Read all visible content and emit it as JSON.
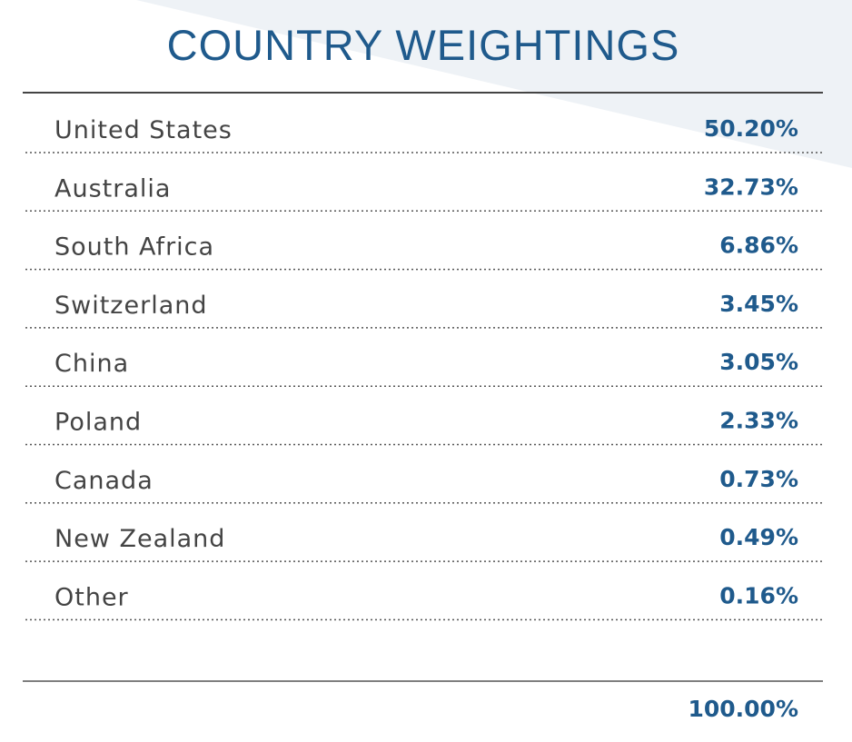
{
  "header": {
    "title": "COUNTRY WEIGHTINGS"
  },
  "table": {
    "rows": [
      [
        "United States",
        "50.20%"
      ],
      [
        "Australia",
        "32.73%"
      ],
      [
        "South Africa",
        "6.86%"
      ],
      [
        "Switzerland",
        "3.45%"
      ],
      [
        "China",
        "3.05%"
      ],
      [
        "Poland",
        "2.33%"
      ],
      [
        "Canada",
        "0.73%"
      ],
      [
        "New Zealand",
        "0.49%"
      ],
      [
        "Other",
        "0.16%"
      ]
    ],
    "total": "100.00%"
  }
}
